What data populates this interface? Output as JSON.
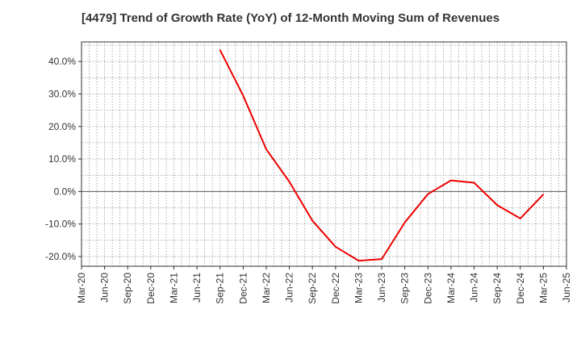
{
  "chart_data": {
    "type": "line",
    "title": "[4479]  Trend of Growth Rate (YoY) of 12-Month Moving Sum of Revenues",
    "xlabel": "",
    "ylabel": "",
    "x_ticks": [
      "Mar-20",
      "Jun-20",
      "Sep-20",
      "Dec-20",
      "Mar-21",
      "Jun-21",
      "Sep-21",
      "Dec-21",
      "Mar-22",
      "Jun-22",
      "Sep-22",
      "Dec-22",
      "Mar-23",
      "Jun-23",
      "Sep-23",
      "Dec-23",
      "Mar-24",
      "Jun-24",
      "Sep-24",
      "Dec-24",
      "Mar-25",
      "Jun-25"
    ],
    "y_ticks": [
      "40.0%",
      "30.0%",
      "20.0%",
      "10.0%",
      "0.0%",
      "-10.0%",
      "-20.0%"
    ],
    "y_tick_values": [
      40,
      30,
      20,
      10,
      0,
      -10,
      -20
    ],
    "ylim": [
      -23,
      46
    ],
    "grid": true,
    "zero_line": true,
    "series": [
      {
        "color": "#ee0000",
        "x": [
          "Sep-21",
          "Dec-21",
          "Mar-22",
          "Jun-22",
          "Sep-22",
          "Dec-22",
          "Mar-23",
          "Jun-23",
          "Sep-23",
          "Dec-23",
          "Mar-24",
          "Jun-24",
          "Sep-24",
          "Dec-24",
          "Mar-25"
        ],
        "values": [
          43.5,
          29.5,
          13.0,
          3.0,
          -9.0,
          -17.0,
          -21.3,
          -20.8,
          -9.5,
          -0.8,
          3.4,
          2.7,
          -4.2,
          -8.3,
          -0.9
        ]
      }
    ]
  }
}
